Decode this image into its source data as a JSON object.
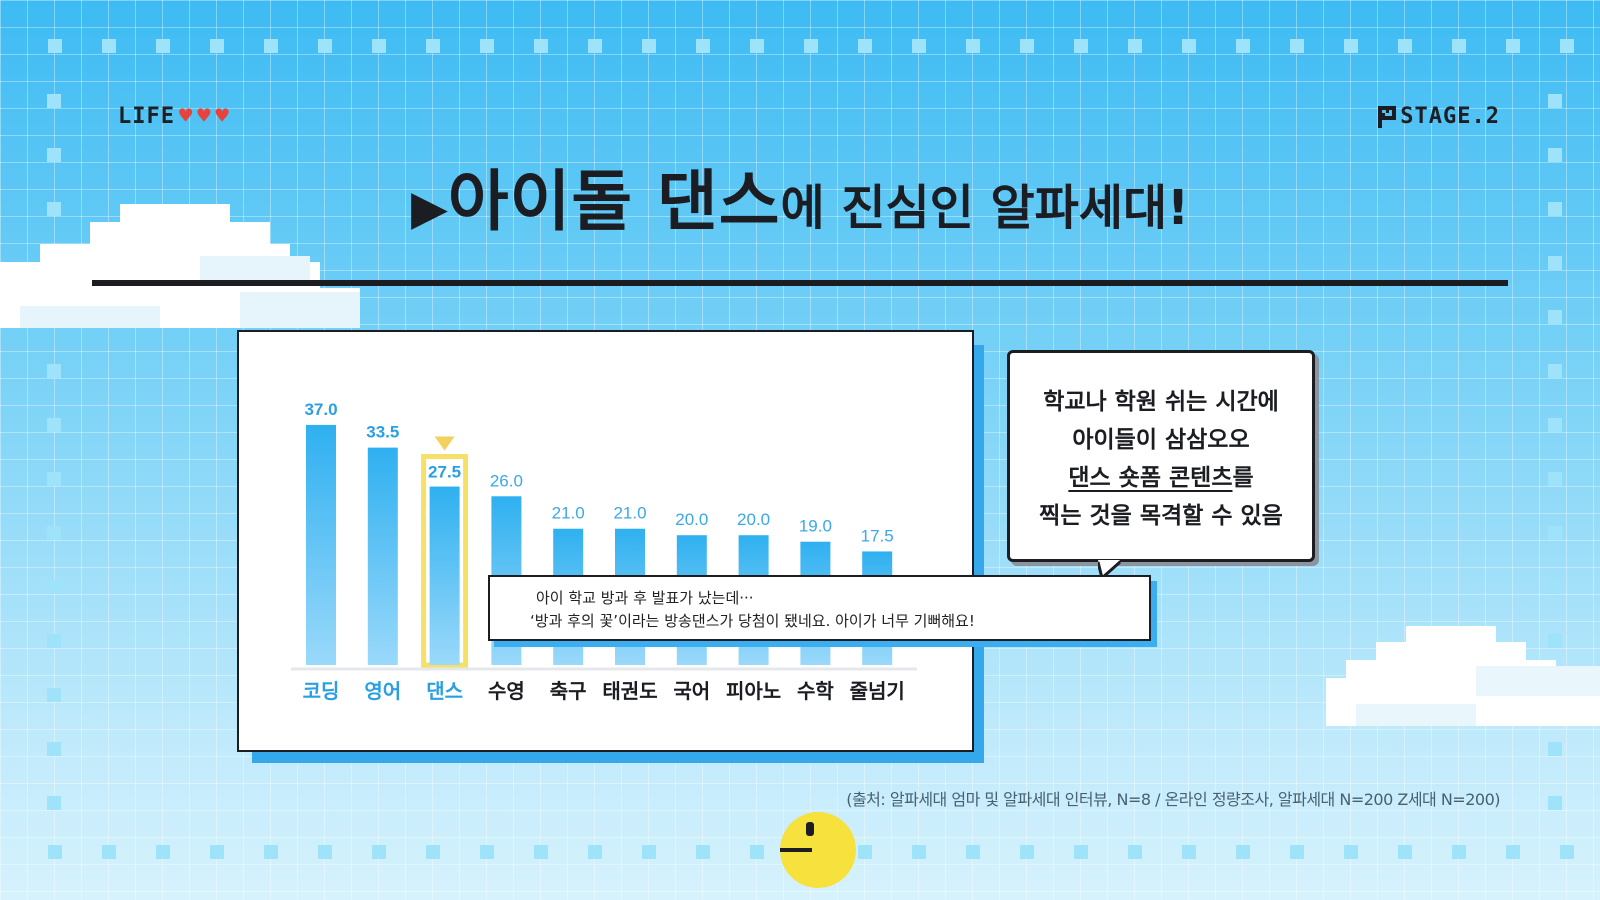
{
  "header": {
    "life_label": "LIFE",
    "stage_label": "STAGE.2"
  },
  "title": {
    "marker": "▶",
    "part1": "아이돌 댄스",
    "part2": "에 진심인 알파세대!"
  },
  "chart_data": {
    "type": "bar",
    "categories": [
      "코딩",
      "영어",
      "댄스",
      "수영",
      "축구",
      "태권도",
      "국어",
      "피아노",
      "수학",
      "줄넘기"
    ],
    "values": [
      37.0,
      33.5,
      27.5,
      26.0,
      21.0,
      21.0,
      20.0,
      20.0,
      19.0,
      17.5
    ],
    "value_labels": [
      "37.0",
      "33.5",
      "27.5",
      "26.0",
      "21.0",
      "21.0",
      "20.0",
      "20.0",
      "19.0",
      "17.5"
    ],
    "highlight_index": 2,
    "title": "",
    "xlabel": "",
    "ylabel": "",
    "ylim": [
      0,
      40
    ],
    "grid": false,
    "colors": {
      "bar": "#2fb0f0",
      "bar_light": "#9ad9fa",
      "highlight_border": "#f5e06a",
      "marker": "#f2d15c",
      "category_top": "#2a9fe3",
      "category_other": "#1b1d22",
      "label_top": "#2a9fe3",
      "label_other": "#3aa8e8"
    }
  },
  "bubble": {
    "line1": "학교나 학원 쉬는 시간에",
    "line2": "아이들이 삼삼오오",
    "line3_underlined": "댄스 숏폼 콘텐츠",
    "line3_rest": "를",
    "line4": "찍는 것을 목격할 수 있음"
  },
  "quote": {
    "line1": "아이 학교 방과 후 발표가 났는데···",
    "line2": "‘방과 후의 꽃’이라는 방송댄스가 당첨이 됐네요. 아이가 너무 기뻐해요!"
  },
  "source": "(출처: 알파세대 엄마 및 알파세대 인터뷰, N=8 / 온라인 정량조사, 알파세대 N=200 Z세대 N=200)"
}
